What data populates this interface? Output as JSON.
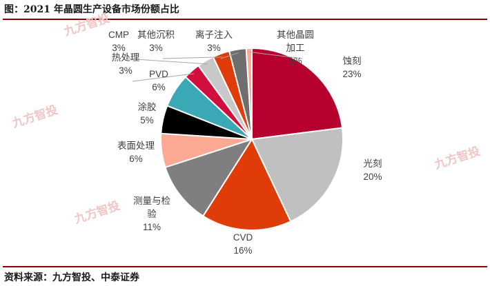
{
  "header": {
    "title": "图：2021 年晶圆生产设备市场份额占比"
  },
  "footer": {
    "source": "资料来源：九方智投、中泰证券"
  },
  "watermark": "九方智投",
  "chart_data": {
    "type": "pie",
    "title": "",
    "slices": [
      {
        "label": "蚀刻",
        "value": 23,
        "display": "23%",
        "color": "#b8002e"
      },
      {
        "label": "光刻",
        "value": 20,
        "display": "20%",
        "color": "#c0c0c0"
      },
      {
        "label": "CVD",
        "value": 16,
        "display": "16%",
        "color": "#e03c0a"
      },
      {
        "label": "测量与检验",
        "value": 11,
        "display": "11%",
        "color": "#7f7f7f"
      },
      {
        "label": "表面处理",
        "value": 6,
        "display": "6%",
        "color": "#fca994"
      },
      {
        "label": "涂胶",
        "value": 5,
        "display": "5%",
        "color": "#000000"
      },
      {
        "label": "PVD",
        "value": 6,
        "display": "6%",
        "color": "#3aa8b5"
      },
      {
        "label": "热处理",
        "value": 3,
        "display": "3%",
        "color": "#d10f3c"
      },
      {
        "label": "CMP",
        "value": 3,
        "display": "3%",
        "color": "#c8c8c8"
      },
      {
        "label": "其他沉积",
        "value": 3,
        "display": "3%",
        "color": "#e03c0a"
      },
      {
        "label": "离子注入",
        "value": 3,
        "display": "3%",
        "color": "#6e6e6e"
      },
      {
        "label": "其他晶圆加工",
        "value": 1,
        "display": "1%",
        "color": "#fca994"
      }
    ],
    "label_lines": [
      [
        "蚀刻",
        "23%"
      ],
      [
        "光刻",
        "20%"
      ],
      [
        "CVD",
        "16%"
      ],
      [
        "测量与检",
        "验",
        "11%"
      ],
      [
        "表面处理",
        "6%"
      ],
      [
        "涂胶",
        "5%"
      ],
      [
        "PVD",
        "6%"
      ],
      [
        "热处理",
        "3%"
      ],
      [
        "CMP",
        "3%"
      ],
      [
        "其他沉积",
        "3%"
      ],
      [
        "离子注入",
        "3%"
      ],
      [
        "其他晶圆",
        "加工",
        "1%"
      ]
    ]
  }
}
